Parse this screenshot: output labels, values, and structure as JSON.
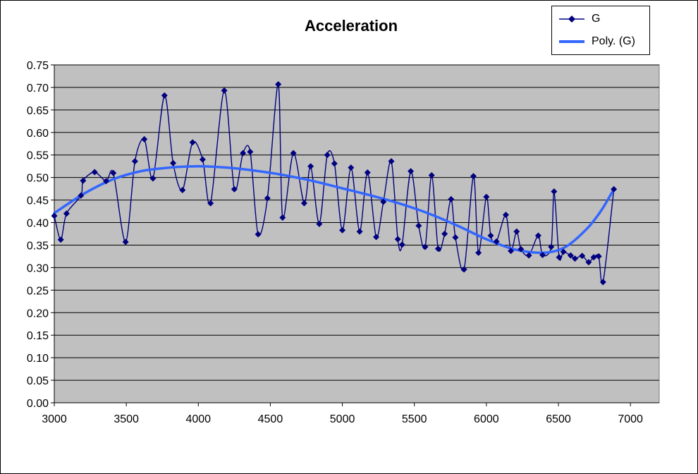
{
  "chart_data": {
    "type": "line",
    "title": "Acceleration",
    "xlabel": "",
    "ylabel": "",
    "xlim": [
      3000,
      7200
    ],
    "ylim": [
      0,
      0.75
    ],
    "x_ticks": [
      "3000",
      "3500",
      "4000",
      "4500",
      "5000",
      "5500",
      "6000",
      "6500",
      "7000"
    ],
    "y_ticks": [
      "0.00",
      "0.05",
      "0.10",
      "0.15",
      "0.20",
      "0.25",
      "0.30",
      "0.35",
      "0.40",
      "0.45",
      "0.50",
      "0.55",
      "0.60",
      "0.65",
      "0.70",
      "0.75"
    ],
    "grid": true,
    "legend_position": "top-right",
    "legend": [
      "G",
      "Poly. (G)"
    ],
    "series": [
      {
        "name": "G",
        "color": "#000080",
        "marker": "diamond",
        "x": [
          3000,
          3045,
          3085,
          3185,
          3200,
          3280,
          3360,
          3410,
          3495,
          3560,
          3625,
          3685,
          3765,
          3825,
          3890,
          3960,
          4030,
          4085,
          4180,
          4250,
          4310,
          4360,
          4415,
          4480,
          4555,
          4585,
          4660,
          4735,
          4780,
          4840,
          4895,
          4945,
          5000,
          5060,
          5120,
          5175,
          5235,
          5285,
          5340,
          5385,
          5415,
          5475,
          5530,
          5575,
          5620,
          5665,
          5710,
          5755,
          5785,
          5845,
          5910,
          5945,
          6000,
          6030,
          6070,
          6135,
          6170,
          6210,
          6240,
          6295,
          6360,
          6390,
          6450,
          6470,
          6505,
          6535,
          6585,
          6615,
          6665,
          6710,
          6745,
          6780,
          6810,
          6885
        ],
        "y": [
          0.415,
          0.362,
          0.42,
          0.46,
          0.493,
          0.512,
          0.492,
          0.51,
          0.357,
          0.536,
          0.585,
          0.498,
          0.682,
          0.532,
          0.472,
          0.578,
          0.54,
          0.443,
          0.693,
          0.474,
          0.554,
          0.557,
          0.374,
          0.454,
          0.707,
          0.411,
          0.554,
          0.443,
          0.525,
          0.397,
          0.55,
          0.531,
          0.383,
          0.522,
          0.38,
          0.511,
          0.368,
          0.446,
          0.536,
          0.363,
          0.351,
          0.514,
          0.393,
          0.346,
          0.505,
          0.342,
          0.375,
          0.452,
          0.367,
          0.296,
          0.503,
          0.333,
          0.457,
          0.371,
          0.358,
          0.417,
          0.337,
          0.38,
          0.341,
          0.327,
          0.371,
          0.328,
          0.346,
          0.469,
          0.323,
          0.335,
          0.327,
          0.32,
          0.326,
          0.312,
          0.323,
          0.325,
          0.268,
          0.474
        ]
      },
      {
        "name": "Poly. (G)",
        "color": "#3366FF",
        "x": [
          3000,
          3200,
          3400,
          3600,
          3800,
          4000,
          4200,
          4400,
          4600,
          4800,
          5000,
          5200,
          5400,
          5600,
          5800,
          6000,
          6200,
          6400,
          6550,
          6700,
          6800,
          6885
        ],
        "y": [
          0.421,
          0.463,
          0.495,
          0.514,
          0.522,
          0.525,
          0.522,
          0.515,
          0.505,
          0.492,
          0.476,
          0.46,
          0.442,
          0.42,
          0.393,
          0.363,
          0.34,
          0.333,
          0.346,
          0.387,
          0.428,
          0.474
        ]
      }
    ]
  }
}
